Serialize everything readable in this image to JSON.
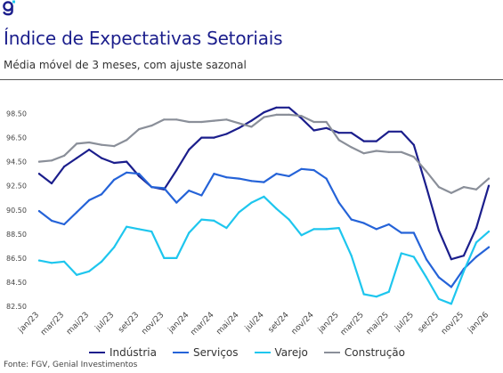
{
  "header": {
    "logo_text": "g",
    "title": "Índice de Expectativas Setoriais",
    "subtitle": "Média móvel de 3 meses, com ajuste sazonal"
  },
  "source": "Fonte: FGV, Genial Investimentos",
  "chart_data": {
    "type": "line",
    "title": "",
    "xlabel": "",
    "ylabel": "",
    "ylim": [
      82.5,
      99.5
    ],
    "yticks": [
      "82.50",
      "84.50",
      "86.50",
      "88.50",
      "90.50",
      "92.50",
      "94.50",
      "96.50",
      "98.50"
    ],
    "grid": false,
    "legend_position": "bottom",
    "categories": [
      "jan/23",
      "fev/23",
      "mar/23",
      "abr/23",
      "mai/23",
      "jun/23",
      "jul/23",
      "ago/23",
      "set/23",
      "out/23",
      "nov/23",
      "dez/23",
      "jan/24",
      "fev/24",
      "mar/24",
      "abr/24",
      "mai/24",
      "jun/24",
      "jul/24",
      "ago/24",
      "set/24",
      "out/24",
      "nov/24",
      "dez/24",
      "jan/25",
      "fev/25",
      "mar/25",
      "abr/25",
      "mai/25",
      "jun/25",
      "jul/25",
      "ago/25",
      "set/25",
      "out/25",
      "nov/25",
      "dez/25",
      "jan/26"
    ],
    "tick_labels": [
      "jan/23",
      "mar/23",
      "mai/23",
      "jul/23",
      "set/23",
      "nov/23",
      "jan/24",
      "mar/24",
      "mai/24",
      "jul/24",
      "set/24",
      "nov/24",
      "jan/25",
      "mar/25",
      "mai/25",
      "jul/25",
      "set/25",
      "nov/25",
      "jan/26"
    ],
    "series": [
      {
        "name": "Indústria",
        "color": "#1b1e8c",
        "values": [
          93.5,
          92.7,
          94.1,
          94.8,
          95.5,
          94.8,
          94.4,
          94.5,
          93.3,
          92.4,
          92.2,
          93.8,
          95.5,
          96.5,
          96.5,
          96.8,
          97.3,
          97.9,
          98.6,
          99.0,
          99.0,
          98.1,
          97.1,
          97.3,
          96.9,
          96.9,
          96.2,
          96.2,
          97.0,
          97.0,
          95.9,
          92.4,
          88.8,
          86.4,
          86.7,
          89.0,
          92.5
        ]
      },
      {
        "name": "Serviços",
        "color": "#2563d8",
        "values": [
          90.4,
          89.6,
          89.3,
          90.3,
          91.3,
          91.8,
          93.0,
          93.6,
          93.5,
          92.4,
          92.3,
          91.1,
          92.1,
          91.7,
          93.5,
          93.2,
          93.1,
          92.9,
          92.8,
          93.5,
          93.3,
          93.9,
          93.8,
          93.1,
          91.1,
          89.7,
          89.4,
          88.9,
          89.3,
          88.6,
          88.6,
          86.4,
          84.9,
          84.1,
          85.6,
          86.6,
          87.4
        ]
      },
      {
        "name": "Varejo",
        "color": "#1ec6ee",
        "values": [
          86.3,
          86.1,
          86.2,
          85.1,
          85.4,
          86.2,
          87.4,
          89.1,
          88.9,
          88.7,
          86.5,
          86.5,
          88.6,
          89.7,
          89.6,
          89.0,
          90.3,
          91.1,
          91.6,
          90.6,
          89.7,
          88.4,
          88.9,
          88.9,
          89.0,
          86.7,
          83.5,
          83.3,
          83.7,
          86.9,
          86.6,
          84.9,
          83.1,
          82.7,
          85.4,
          87.8,
          88.7
        ]
      },
      {
        "name": "Construção",
        "color": "#8a8f99",
        "values": [
          94.5,
          94.6,
          95.0,
          96.0,
          96.1,
          95.9,
          95.8,
          96.3,
          97.2,
          97.5,
          98.0,
          98.0,
          97.8,
          97.8,
          97.9,
          98.0,
          97.7,
          97.4,
          98.2,
          98.4,
          98.4,
          98.3,
          97.8,
          97.8,
          96.3,
          95.7,
          95.2,
          95.4,
          95.3,
          95.3,
          94.9,
          93.7,
          92.4,
          91.9,
          92.4,
          92.2,
          93.1
        ]
      }
    ]
  }
}
